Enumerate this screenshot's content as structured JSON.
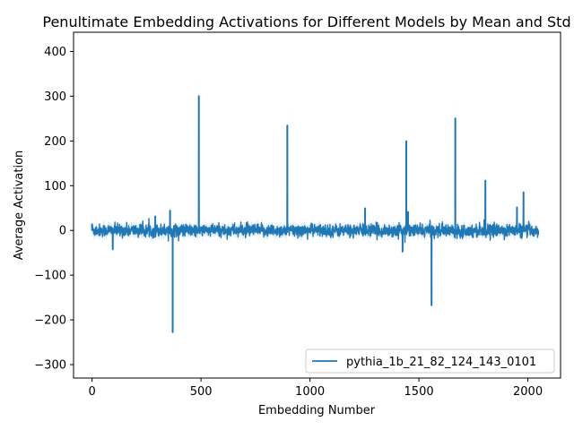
{
  "chart_data": {
    "type": "line",
    "title": "Penultimate Embedding Activations for Different Models by Mean and Std",
    "xlabel": "Embedding Number",
    "ylabel": "Average Activation",
    "xlim": [
      -85,
      2150
    ],
    "ylim": [
      -330,
      443
    ],
    "xticks": [
      0,
      500,
      1000,
      1500,
      2000
    ],
    "yticks": [
      -300,
      -200,
      -100,
      0,
      100,
      200,
      300,
      400
    ],
    "grid": false,
    "legend_position": "lower right",
    "num_points": 2048,
    "baseline_noise_mean": 0,
    "baseline_noise_std": 7,
    "band_std": 12,
    "series": [
      {
        "name": "pythia_1b_21_82_124_143_0101",
        "color": "#1f77b4",
        "band_color": "#a6c8e6",
        "spikes": [
          {
            "x": 0,
            "y": 15
          },
          {
            "x": 95,
            "y": -43
          },
          {
            "x": 290,
            "y": 32
          },
          {
            "x": 358,
            "y": 45
          },
          {
            "x": 370,
            "y": -228
          },
          {
            "x": 490,
            "y": 301
          },
          {
            "x": 896,
            "y": 235
          },
          {
            "x": 1253,
            "y": 50
          },
          {
            "x": 1425,
            "y": -48
          },
          {
            "x": 1442,
            "y": 200
          },
          {
            "x": 1450,
            "y": 42
          },
          {
            "x": 1558,
            "y": -168
          },
          {
            "x": 1667,
            "y": 251
          },
          {
            "x": 1805,
            "y": 112
          },
          {
            "x": 1950,
            "y": 52
          },
          {
            "x": 1980,
            "y": 86
          },
          {
            "x": 2047,
            "y": -10
          }
        ]
      }
    ]
  }
}
